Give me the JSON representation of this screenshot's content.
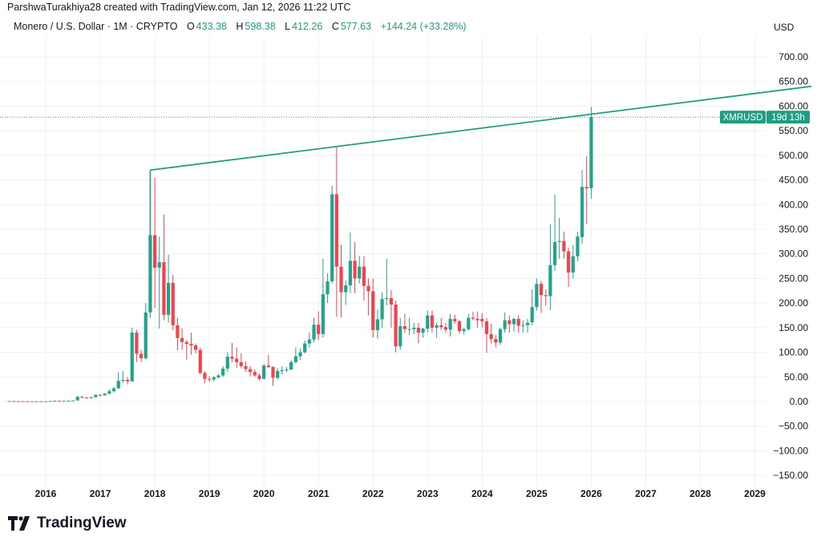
{
  "header": {
    "credit": "ParshwaTurakhiya28 created with TradingView.com, Jan 12, 2026 11:22 UTC",
    "symbol": "Monero / U.S. Dollar · 1M · CRYPTO",
    "open_label": "O",
    "open": "433.38",
    "high_label": "H",
    "high": "598.38",
    "low_label": "L",
    "low": "412.26",
    "close_label": "C",
    "close": "577.63",
    "change": "+144.24 (+33.28%)"
  },
  "price_scale": {
    "currency": "USD"
  },
  "price_tag": {
    "symbol": "XMRUSD",
    "countdown": "19d 13h",
    "price": 577.63
  },
  "logo": {
    "text": "TradingView"
  },
  "colors": {
    "up": "#22a38c",
    "down": "#f0434f",
    "trendline": "#1f9e83",
    "grid": "#f0f1f4"
  },
  "chart_data": {
    "type": "candlestick",
    "interval": "1M",
    "ylim": [
      -165,
      745
    ],
    "y_ticks": [
      "700.00",
      "650.00",
      "600.00",
      "550.00",
      "500.00",
      "450.00",
      "400.00",
      "350.00",
      "300.00",
      "250.00",
      "200.00",
      "150.00",
      "100.00",
      "50.00",
      "0.00",
      "−50.00",
      "−100.00",
      "−150.00"
    ],
    "x_ticks": [
      "2016",
      "2017",
      "2018",
      "2019",
      "2020",
      "2021",
      "2022",
      "2023",
      "2024",
      "2025",
      "2026",
      "2027",
      "2028",
      "2029"
    ],
    "grid": true,
    "trendline": {
      "from": [
        "2017-12",
        470
      ],
      "through": [
        "2021-05",
        518
      ]
    },
    "candles": [
      [
        "2015-05",
        1.0,
        1.1,
        0.9,
        1.0
      ],
      [
        "2015-06",
        1.0,
        1.0,
        0.7,
        0.8
      ],
      [
        "2015-07",
        0.8,
        0.9,
        0.6,
        0.7
      ],
      [
        "2015-08",
        0.7,
        0.9,
        0.4,
        0.6
      ],
      [
        "2015-09",
        0.6,
        0.6,
        0.4,
        0.5
      ],
      [
        "2015-10",
        0.5,
        0.6,
        0.4,
        0.5
      ],
      [
        "2015-11",
        0.5,
        0.7,
        0.4,
        0.5
      ],
      [
        "2015-12",
        0.5,
        0.6,
        0.4,
        0.45
      ],
      [
        "2016-01",
        0.45,
        0.6,
        0.4,
        0.5
      ],
      [
        "2016-02",
        0.5,
        1.2,
        0.45,
        1.1
      ],
      [
        "2016-03",
        1.1,
        2.0,
        1.0,
        1.8
      ],
      [
        "2016-04",
        1.8,
        1.9,
        1.1,
        1.3
      ],
      [
        "2016-05",
        1.3,
        1.5,
        1.1,
        1.4
      ],
      [
        "2016-06",
        1.4,
        2.0,
        1.3,
        1.8
      ],
      [
        "2016-07",
        1.8,
        2.4,
        1.7,
        2.2
      ],
      [
        "2016-08",
        2.2,
        12,
        2.1,
        9.5
      ],
      [
        "2016-09",
        9.5,
        11,
        6.5,
        8
      ],
      [
        "2016-10",
        8,
        8.5,
        6,
        7
      ],
      [
        "2016-11",
        7,
        10,
        6,
        9
      ],
      [
        "2016-12",
        9,
        14,
        8,
        13.7
      ],
      [
        "2017-01",
        13.7,
        15,
        10,
        12.6
      ],
      [
        "2017-02",
        12.6,
        17,
        12,
        16
      ],
      [
        "2017-03",
        16,
        25,
        14,
        21
      ],
      [
        "2017-04",
        21,
        29,
        18,
        27
      ],
      [
        "2017-05",
        27,
        60,
        25,
        42
      ],
      [
        "2017-06",
        42,
        62,
        38,
        44
      ],
      [
        "2017-07",
        44,
        50,
        35,
        41
      ],
      [
        "2017-08",
        41,
        150,
        40,
        140
      ],
      [
        "2017-09",
        140,
        146,
        80,
        97
      ],
      [
        "2017-10",
        97,
        105,
        80,
        88
      ],
      [
        "2017-11",
        88,
        200,
        85,
        181
      ],
      [
        "2017-12",
        181,
        470,
        170,
        338
      ],
      [
        "2018-01",
        338,
        455,
        190,
        272
      ],
      [
        "2018-02",
        272,
        335,
        148,
        283
      ],
      [
        "2018-03",
        283,
        380,
        165,
        176
      ],
      [
        "2018-04",
        176,
        298,
        160,
        241
      ],
      [
        "2018-05",
        241,
        257,
        145,
        155
      ],
      [
        "2018-06",
        155,
        170,
        104,
        129
      ],
      [
        "2018-07",
        129,
        148,
        105,
        121
      ],
      [
        "2018-08",
        121,
        125,
        85,
        117
      ],
      [
        "2018-09",
        117,
        140,
        95,
        114
      ],
      [
        "2018-10",
        114,
        118,
        98,
        105
      ],
      [
        "2018-11",
        105,
        110,
        55,
        58
      ],
      [
        "2018-12",
        58,
        62,
        37,
        46
      ],
      [
        "2019-01",
        46,
        52,
        40,
        45
      ],
      [
        "2019-02",
        45,
        52,
        41,
        49
      ],
      [
        "2019-03",
        49,
        56,
        47,
        53
      ],
      [
        "2019-04",
        53,
        72,
        50,
        67
      ],
      [
        "2019-05",
        67,
        100,
        60,
        91
      ],
      [
        "2019-06",
        91,
        119,
        80,
        87
      ],
      [
        "2019-07",
        87,
        110,
        68,
        80
      ],
      [
        "2019-08",
        80,
        98,
        67,
        72
      ],
      [
        "2019-09",
        72,
        82,
        60,
        66
      ],
      [
        "2019-10",
        66,
        72,
        51,
        60
      ],
      [
        "2019-11",
        60,
        66,
        50,
        53
      ],
      [
        "2019-12",
        53,
        57,
        43,
        46
      ],
      [
        "2020-01",
        46,
        76,
        45,
        73
      ],
      [
        "2020-02",
        73,
        95,
        68,
        70
      ],
      [
        "2020-03",
        70,
        72,
        32,
        48
      ],
      [
        "2020-04",
        48,
        68,
        45,
        62
      ],
      [
        "2020-05",
        62,
        72,
        55,
        64
      ],
      [
        "2020-06",
        64,
        70,
        60,
        65
      ],
      [
        "2020-07",
        65,
        84,
        64,
        80
      ],
      [
        "2020-08",
        80,
        110,
        78,
        92
      ],
      [
        "2020-09",
        92,
        108,
        84,
        100
      ],
      [
        "2020-10",
        100,
        124,
        98,
        118
      ],
      [
        "2020-11",
        118,
        140,
        110,
        126
      ],
      [
        "2020-12",
        126,
        170,
        120,
        156
      ],
      [
        "2021-01",
        156,
        183,
        125,
        137
      ],
      [
        "2021-02",
        137,
        290,
        130,
        218
      ],
      [
        "2021-03",
        218,
        260,
        200,
        244
      ],
      [
        "2021-04",
        244,
        438,
        240,
        421
      ],
      [
        "2021-05",
        421,
        518,
        172,
        274
      ],
      [
        "2021-06",
        274,
        318,
        171,
        222
      ],
      [
        "2021-07",
        222,
        246,
        196,
        236
      ],
      [
        "2021-08",
        236,
        343,
        220,
        286
      ],
      [
        "2021-09",
        286,
        324,
        220,
        250
      ],
      [
        "2021-10",
        250,
        296,
        240,
        274
      ],
      [
        "2021-11",
        274,
        295,
        205,
        235
      ],
      [
        "2021-12",
        235,
        250,
        175,
        224
      ],
      [
        "2022-01",
        224,
        250,
        130,
        145
      ],
      [
        "2022-02",
        145,
        187,
        128,
        167
      ],
      [
        "2022-03",
        167,
        222,
        150,
        208
      ],
      [
        "2022-04",
        208,
        290,
        195,
        210
      ],
      [
        "2022-05",
        210,
        226,
        150,
        197
      ],
      [
        "2022-06",
        197,
        205,
        100,
        112
      ],
      [
        "2022-07",
        112,
        170,
        105,
        153
      ],
      [
        "2022-08",
        153,
        178,
        140,
        147
      ],
      [
        "2022-09",
        147,
        170,
        135,
        147
      ],
      [
        "2022-10",
        147,
        160,
        137,
        150
      ],
      [
        "2022-11",
        150,
        160,
        118,
        140
      ],
      [
        "2022-12",
        140,
        150,
        130,
        148
      ],
      [
        "2023-01",
        148,
        185,
        140,
        175
      ],
      [
        "2023-02",
        175,
        185,
        140,
        150
      ],
      [
        "2023-03",
        150,
        160,
        130,
        155
      ],
      [
        "2023-04",
        155,
        170,
        145,
        151
      ],
      [
        "2023-05",
        151,
        160,
        140,
        146
      ],
      [
        "2023-06",
        146,
        178,
        132,
        168
      ],
      [
        "2023-07",
        168,
        176,
        158,
        163
      ],
      [
        "2023-08",
        163,
        166,
        138,
        143
      ],
      [
        "2023-09",
        143,
        150,
        136,
        147
      ],
      [
        "2023-10",
        147,
        178,
        144,
        170
      ],
      [
        "2023-11",
        170,
        182,
        165,
        168
      ],
      [
        "2023-12",
        168,
        183,
        150,
        165
      ],
      [
        "2024-01",
        168,
        180,
        150,
        163
      ],
      [
        "2024-02",
        163,
        170,
        99,
        137
      ],
      [
        "2024-03",
        137,
        158,
        118,
        127
      ],
      [
        "2024-04",
        127,
        135,
        110,
        120
      ],
      [
        "2024-05",
        120,
        150,
        115,
        147
      ],
      [
        "2024-06",
        147,
        181,
        140,
        165
      ],
      [
        "2024-07",
        165,
        175,
        140,
        157
      ],
      [
        "2024-08",
        157,
        170,
        142,
        168
      ],
      [
        "2024-09",
        168,
        175,
        140,
        154
      ],
      [
        "2024-10",
        154,
        165,
        140,
        155
      ],
      [
        "2024-11",
        155,
        168,
        140,
        160
      ],
      [
        "2024-12",
        161,
        228,
        155,
        192
      ],
      [
        "2025-01",
        192,
        250,
        185,
        239
      ],
      [
        "2025-02",
        239,
        245,
        180,
        216
      ],
      [
        "2025-03",
        216,
        228,
        195,
        214
      ],
      [
        "2025-04",
        214,
        360,
        186,
        277
      ],
      [
        "2025-05",
        277,
        420,
        265,
        324
      ],
      [
        "2025-06",
        324,
        373,
        290,
        326
      ],
      [
        "2025-07",
        326,
        345,
        290,
        305
      ],
      [
        "2025-08",
        305,
        312,
        233,
        262
      ],
      [
        "2025-09",
        262,
        318,
        250,
        295
      ],
      [
        "2025-10",
        295,
        345,
        285,
        335
      ],
      [
        "2025-11",
        334,
        470,
        320,
        436
      ],
      [
        "2025-12",
        436,
        498,
        360,
        433
      ],
      [
        "2026-01",
        433.38,
        598.38,
        412.26,
        577.63
      ]
    ]
  }
}
